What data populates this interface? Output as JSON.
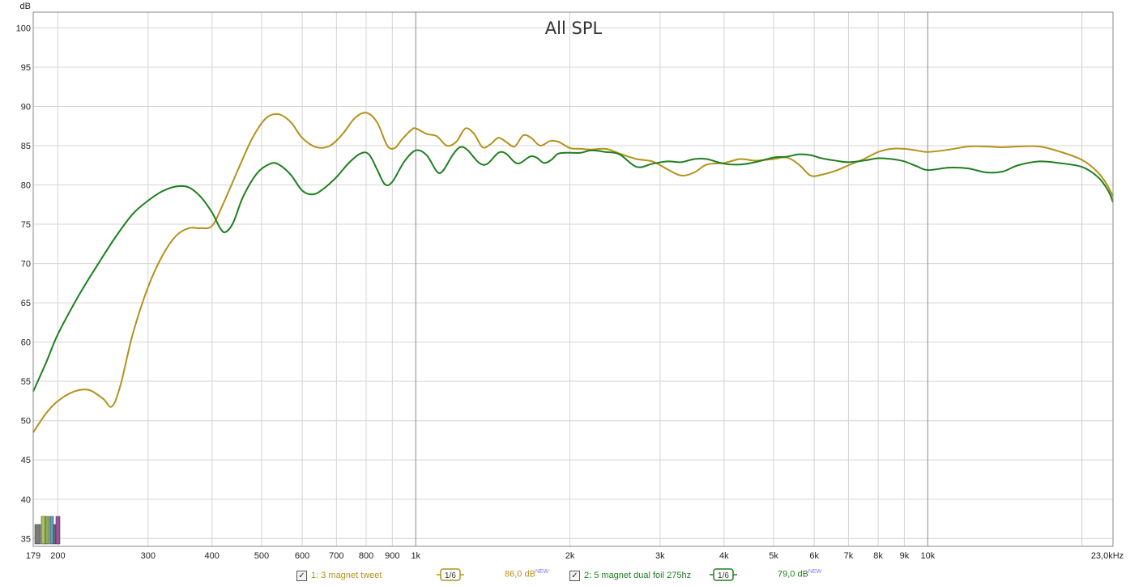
{
  "chart_data": {
    "type": "line",
    "title": "All SPL",
    "ylabel": "dB",
    "xscale": "log",
    "xlim": [
      179,
      23000
    ],
    "ylim": [
      34,
      102
    ],
    "y_ticks": [
      35,
      40,
      45,
      50,
      55,
      60,
      65,
      70,
      75,
      80,
      85,
      90,
      95,
      100
    ],
    "x_ticks": [
      {
        "v": 179,
        "label": "179"
      },
      {
        "v": 200,
        "label": "200"
      },
      {
        "v": 300,
        "label": "300"
      },
      {
        "v": 400,
        "label": "400"
      },
      {
        "v": 500,
        "label": "500"
      },
      {
        "v": 600,
        "label": "600"
      },
      {
        "v": 700,
        "label": "700"
      },
      {
        "v": 800,
        "label": "800"
      },
      {
        "v": 900,
        "label": "900"
      },
      {
        "v": 1000,
        "label": "1k"
      },
      {
        "v": 2000,
        "label": "2k"
      },
      {
        "v": 3000,
        "label": "3k"
      },
      {
        "v": 4000,
        "label": "4k"
      },
      {
        "v": 5000,
        "label": "5k"
      },
      {
        "v": 6000,
        "label": "6k"
      },
      {
        "v": 7000,
        "label": "7k"
      },
      {
        "v": 8000,
        "label": "8k"
      },
      {
        "v": 9000,
        "label": "9k"
      },
      {
        "v": 10000,
        "label": "10k"
      },
      {
        "v": 23000,
        "label": "23,0kHz"
      }
    ],
    "grid": true,
    "series": [
      {
        "name": "1: 3 magnet tweet",
        "color": "#b3921a",
        "smoothing": "1/6",
        "level": "86,0 dB",
        "points": [
          [
            179,
            48.5
          ],
          [
            190,
            51.0
          ],
          [
            200,
            52.5
          ],
          [
            215,
            53.7
          ],
          [
            230,
            53.9
          ],
          [
            245,
            52.8
          ],
          [
            255,
            51.8
          ],
          [
            265,
            54.5
          ],
          [
            280,
            61.0
          ],
          [
            300,
            67.0
          ],
          [
            320,
            71.0
          ],
          [
            340,
            73.5
          ],
          [
            360,
            74.5
          ],
          [
            380,
            74.5
          ],
          [
            400,
            74.8
          ],
          [
            420,
            77.5
          ],
          [
            450,
            82.0
          ],
          [
            480,
            86.0
          ],
          [
            510,
            88.5
          ],
          [
            540,
            89.0
          ],
          [
            570,
            88.0
          ],
          [
            600,
            86.0
          ],
          [
            640,
            84.8
          ],
          [
            680,
            85.0
          ],
          [
            720,
            86.5
          ],
          [
            760,
            88.5
          ],
          [
            800,
            89.2
          ],
          [
            840,
            88.0
          ],
          [
            880,
            85.0
          ],
          [
            910,
            84.7
          ],
          [
            940,
            85.8
          ],
          [
            980,
            87.0
          ],
          [
            1000,
            87.2
          ],
          [
            1050,
            86.5
          ],
          [
            1100,
            86.2
          ],
          [
            1150,
            85.0
          ],
          [
            1200,
            85.5
          ],
          [
            1250,
            87.2
          ],
          [
            1300,
            86.5
          ],
          [
            1350,
            84.8
          ],
          [
            1400,
            85.2
          ],
          [
            1450,
            86.0
          ],
          [
            1500,
            85.5
          ],
          [
            1560,
            84.9
          ],
          [
            1620,
            86.3
          ],
          [
            1680,
            86.0
          ],
          [
            1750,
            85.0
          ],
          [
            1830,
            85.6
          ],
          [
            1900,
            85.5
          ],
          [
            2000,
            84.7
          ],
          [
            2100,
            84.6
          ],
          [
            2200,
            84.5
          ],
          [
            2350,
            84.6
          ],
          [
            2500,
            84.0
          ],
          [
            2700,
            83.3
          ],
          [
            2900,
            83.0
          ],
          [
            3100,
            82.0
          ],
          [
            3300,
            81.2
          ],
          [
            3500,
            81.6
          ],
          [
            3700,
            82.6
          ],
          [
            4000,
            82.8
          ],
          [
            4300,
            83.3
          ],
          [
            4600,
            83.1
          ],
          [
            5000,
            83.3
          ],
          [
            5300,
            83.5
          ],
          [
            5600,
            82.6
          ],
          [
            5900,
            81.2
          ],
          [
            6200,
            81.3
          ],
          [
            6600,
            81.8
          ],
          [
            7000,
            82.5
          ],
          [
            7500,
            83.3
          ],
          [
            8000,
            84.2
          ],
          [
            8500,
            84.6
          ],
          [
            9000,
            84.6
          ],
          [
            9500,
            84.4
          ],
          [
            10000,
            84.2
          ],
          [
            11000,
            84.5
          ],
          [
            12000,
            84.9
          ],
          [
            13000,
            84.9
          ],
          [
            14000,
            84.8
          ],
          [
            15000,
            84.9
          ],
          [
            16500,
            84.9
          ],
          [
            18000,
            84.3
          ],
          [
            20000,
            83.2
          ],
          [
            21500,
            81.6
          ],
          [
            22500,
            79.8
          ],
          [
            23000,
            78.5
          ]
        ]
      },
      {
        "name": "2: 5 magnet dual foil 275hz",
        "color": "#1f7f1f",
        "smoothing": "1/6",
        "level": "79,0 dB",
        "points": [
          [
            179,
            53.7
          ],
          [
            190,
            57.5
          ],
          [
            200,
            61.0
          ],
          [
            220,
            66.0
          ],
          [
            240,
            70.0
          ],
          [
            260,
            73.5
          ],
          [
            280,
            76.3
          ],
          [
            300,
            78.0
          ],
          [
            320,
            79.2
          ],
          [
            340,
            79.8
          ],
          [
            360,
            79.7
          ],
          [
            380,
            78.5
          ],
          [
            400,
            76.5
          ],
          [
            415,
            74.5
          ],
          [
            425,
            74.0
          ],
          [
            440,
            75.2
          ],
          [
            460,
            78.5
          ],
          [
            490,
            81.5
          ],
          [
            520,
            82.7
          ],
          [
            540,
            82.6
          ],
          [
            570,
            81.3
          ],
          [
            600,
            79.3
          ],
          [
            630,
            78.8
          ],
          [
            660,
            79.5
          ],
          [
            700,
            81.0
          ],
          [
            740,
            82.8
          ],
          [
            780,
            84.0
          ],
          [
            810,
            83.9
          ],
          [
            840,
            82.0
          ],
          [
            870,
            80.1
          ],
          [
            900,
            80.4
          ],
          [
            950,
            83.0
          ],
          [
            1000,
            84.4
          ],
          [
            1050,
            83.8
          ],
          [
            1100,
            81.7
          ],
          [
            1130,
            81.8
          ],
          [
            1180,
            83.8
          ],
          [
            1220,
            84.8
          ],
          [
            1260,
            84.5
          ],
          [
            1330,
            82.8
          ],
          [
            1380,
            82.7
          ],
          [
            1450,
            84.1
          ],
          [
            1500,
            84.0
          ],
          [
            1560,
            82.9
          ],
          [
            1600,
            82.8
          ],
          [
            1670,
            83.6
          ],
          [
            1720,
            83.5
          ],
          [
            1780,
            82.8
          ],
          [
            1840,
            83.2
          ],
          [
            1900,
            84.0
          ],
          [
            2000,
            84.1
          ],
          [
            2100,
            84.1
          ],
          [
            2200,
            84.4
          ],
          [
            2350,
            84.2
          ],
          [
            2500,
            83.9
          ],
          [
            2700,
            82.3
          ],
          [
            2900,
            82.7
          ],
          [
            3100,
            83.0
          ],
          [
            3300,
            82.9
          ],
          [
            3500,
            83.3
          ],
          [
            3700,
            83.3
          ],
          [
            4000,
            82.7
          ],
          [
            4300,
            82.6
          ],
          [
            4600,
            82.9
          ],
          [
            5000,
            83.5
          ],
          [
            5300,
            83.6
          ],
          [
            5600,
            83.9
          ],
          [
            5900,
            83.8
          ],
          [
            6200,
            83.4
          ],
          [
            6600,
            83.1
          ],
          [
            7000,
            82.9
          ],
          [
            7500,
            83.1
          ],
          [
            8000,
            83.4
          ],
          [
            8500,
            83.3
          ],
          [
            9000,
            83.0
          ],
          [
            9500,
            82.4
          ],
          [
            10000,
            81.9
          ],
          [
            11000,
            82.2
          ],
          [
            12000,
            82.1
          ],
          [
            13000,
            81.6
          ],
          [
            14000,
            81.7
          ],
          [
            15000,
            82.5
          ],
          [
            16500,
            83.0
          ],
          [
            18000,
            82.8
          ],
          [
            20000,
            82.3
          ],
          [
            21500,
            81.0
          ],
          [
            22500,
            79.3
          ],
          [
            23000,
            77.8
          ]
        ]
      }
    ]
  },
  "legend_controls": {
    "checked_symbol": "✓",
    "smoothing_label": "1/6"
  }
}
